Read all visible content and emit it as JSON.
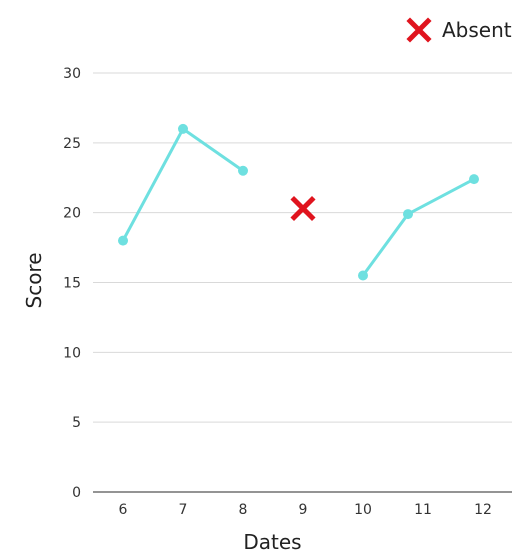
{
  "chart_data": {
    "type": "line",
    "xlabel": "Dates",
    "ylabel": "Score",
    "x_ticks": [
      "6",
      "7",
      "8",
      "9",
      "10",
      "11",
      "12"
    ],
    "y_ticks": [
      "0",
      "5",
      "10",
      "15",
      "20",
      "25",
      "30"
    ],
    "ylim": [
      0,
      30
    ],
    "xlim": [
      5.5,
      12.5
    ],
    "grid": true,
    "legend_position": "top-right",
    "series": [
      {
        "segments": [
          [
            {
              "x": 6,
              "y": 18
            },
            {
              "x": 7,
              "y": 26
            },
            {
              "x": 8,
              "y": 23
            }
          ],
          [
            {
              "x": 10,
              "y": 15.5
            },
            {
              "x": 10.75,
              "y": 19.9
            },
            {
              "x": 11.85,
              "y": 22.4
            }
          ]
        ],
        "color": "#6ee0e0"
      }
    ],
    "absent_markers": [
      {
        "x": 9,
        "y": 20.3
      }
    ],
    "legend": {
      "label": "Absent",
      "marker": "x-icon",
      "color": "#e0141e"
    }
  }
}
